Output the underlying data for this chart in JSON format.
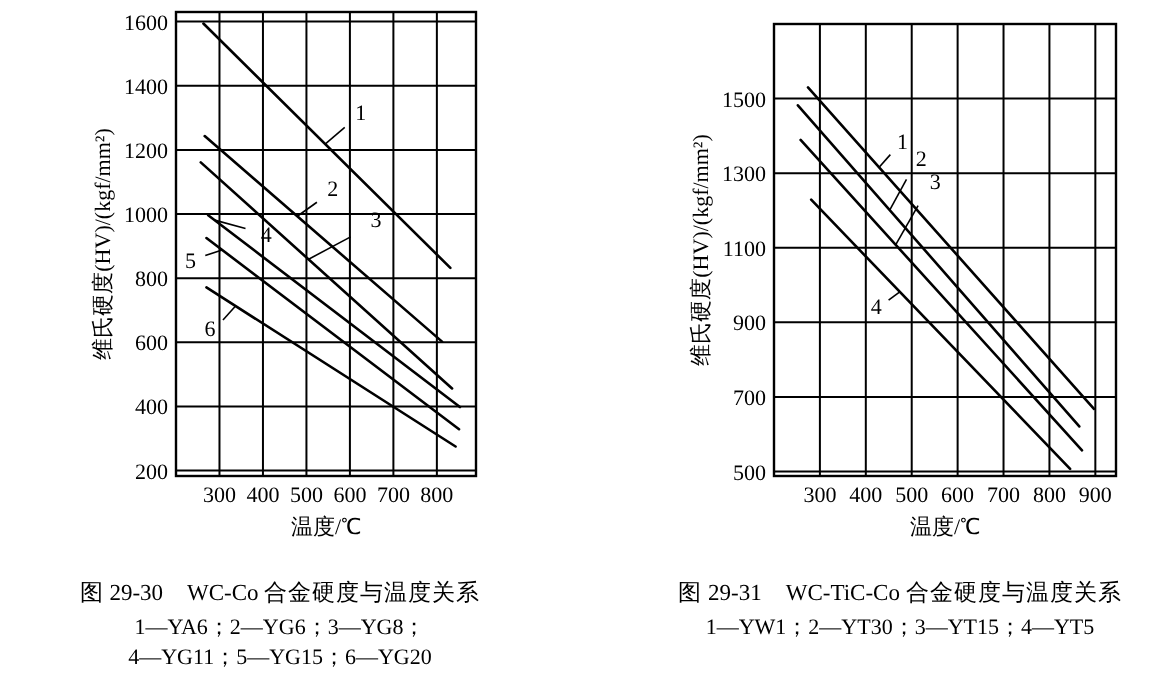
{
  "chart_data": [
    {
      "type": "line",
      "title": "图 29-30　WC-Co 合金硬度与温度关系",
      "subtitle": "1—YA6；2—YG6；3—YG8；4—YG11；5—YG15；6—YG20",
      "xlabel": "温度/℃",
      "ylabel": "维氏硬度(HV)/(kgf/mm²)",
      "xlim": [
        200,
        890
      ],
      "ylim": [
        183,
        1630
      ],
      "xticks": [
        300,
        400,
        500,
        600,
        700,
        800
      ],
      "yticks": [
        200,
        400,
        600,
        800,
        1000,
        1200,
        1400,
        1600
      ],
      "grid": true,
      "series": [
        {
          "x": [
            263,
            831
          ],
          "values": [
            1594,
            832
          ],
          "color": "#000000"
        },
        {
          "x": [
            266,
            812
          ],
          "values": [
            1243,
            602
          ],
          "color": "#000000"
        },
        {
          "x": [
            257,
            835
          ],
          "values": [
            1161,
            456
          ],
          "color": "#000000"
        },
        {
          "x": [
            274,
            853
          ],
          "values": [
            996,
            398
          ],
          "color": "#000000"
        },
        {
          "x": [
            270,
            851
          ],
          "values": [
            925,
            329
          ],
          "color": "#000000"
        },
        {
          "x": [
            270,
            843
          ],
          "values": [
            771,
            275
          ],
          "color": "#000000"
        }
      ],
      "annotations": [
        {
          "text": "1",
          "x": 543,
          "y": 1218
        },
        {
          "text": "2",
          "x": 479,
          "y": 993
        },
        {
          "text": "3",
          "x": 505,
          "y": 859
        },
        {
          "text": "4",
          "x": 289,
          "y": 981
        },
        {
          "text": "5",
          "x": 306,
          "y": 888
        },
        {
          "text": "6",
          "x": 337,
          "y": 713
        }
      ]
    },
    {
      "type": "line",
      "title": "图 29-31　WC-TiC-Co 合金硬度与温度关系",
      "subtitle": "1—YW1；2—YT30；3—YT15；4—YT5",
      "xlabel": "温度/℃",
      "ylabel": "维氏硬度(HV)/(kgf/mm²)",
      "xlim": [
        200,
        945
      ],
      "ylim": [
        488,
        1700
      ],
      "xticks": [
        300,
        400,
        500,
        600,
        700,
        800,
        900
      ],
      "yticks": [
        500,
        700,
        900,
        1100,
        1300,
        1500
      ],
      "grid": true,
      "series": [
        {
          "x": [
            274,
            897
          ],
          "values": [
            1530,
            668
          ],
          "color": "#000000"
        },
        {
          "x": [
            252,
            865
          ],
          "values": [
            1482,
            621
          ],
          "color": "#000000"
        },
        {
          "x": [
            258,
            871
          ],
          "values": [
            1389,
            557
          ],
          "color": "#000000"
        },
        {
          "x": [
            281,
            845
          ],
          "values": [
            1229,
            507
          ],
          "color": "#000000"
        }
      ],
      "annotations": [
        {
          "text": "1",
          "x": 429,
          "y": 1316
        },
        {
          "text": "2",
          "x": 452,
          "y": 1201
        },
        {
          "text": "3",
          "x": 465,
          "y": 1108
        },
        {
          "text": "4",
          "x": 474,
          "y": 982
        }
      ]
    }
  ]
}
